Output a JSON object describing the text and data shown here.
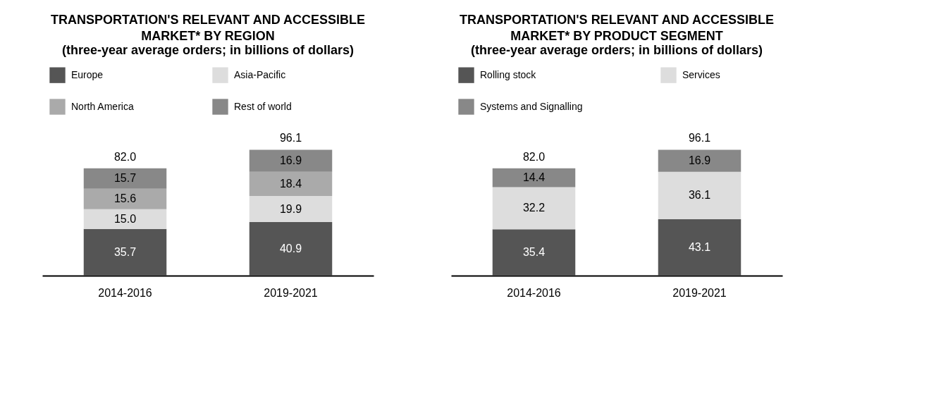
{
  "chart_data": [
    {
      "type": "bar",
      "title": "TRANSPORTATION'S RELEVANT AND ACCESSIBLE MARKET* BY REGION",
      "subtitle": "(three-year average orders; in billions of dollars)",
      "categories": [
        "2014-2016",
        "2019-2021"
      ],
      "stacked": true,
      "legend": "top",
      "totals": [
        "82.0",
        "96.1"
      ],
      "series": [
        {
          "name": "Europe",
          "color": "#555555",
          "values": [
            35.7,
            40.9
          ],
          "value_labels": [
            "35.7",
            "40.9"
          ]
        },
        {
          "name": "Asia-Pacific",
          "color": "#dddddd",
          "values": [
            15.0,
            19.9
          ],
          "value_labels": [
            "15.0",
            "19.9"
          ]
        },
        {
          "name": "North America",
          "color": "#aaaaaa",
          "values": [
            15.6,
            18.4
          ],
          "value_labels": [
            "15.6",
            "18.4"
          ]
        },
        {
          "name": "Rest of world",
          "color": "#888888",
          "values": [
            15.7,
            16.9
          ],
          "value_labels": [
            "15.7",
            "16.9"
          ]
        }
      ]
    },
    {
      "type": "bar",
      "title": "TRANSPORTATION'S RELEVANT AND ACCESSIBLE MARKET* BY PRODUCT SEGMENT",
      "subtitle": "(three-year average orders; in billions of dollars)",
      "categories": [
        "2014-2016",
        "2019-2021"
      ],
      "stacked": true,
      "legend": "top",
      "totals": [
        "82.0",
        "96.1"
      ],
      "series": [
        {
          "name": "Rolling stock",
          "color": "#555555",
          "values": [
            35.4,
            43.1
          ],
          "value_labels": [
            "35.4",
            "43.1"
          ]
        },
        {
          "name": "Services",
          "color": "#dddddd",
          "values": [
            32.2,
            36.1
          ],
          "value_labels": [
            "32.2",
            "36.1"
          ]
        },
        {
          "name": "Systems and Signalling",
          "color": "#888888",
          "values": [
            14.4,
            16.9
          ],
          "value_labels": [
            "14.4",
            "16.9"
          ]
        }
      ]
    }
  ]
}
